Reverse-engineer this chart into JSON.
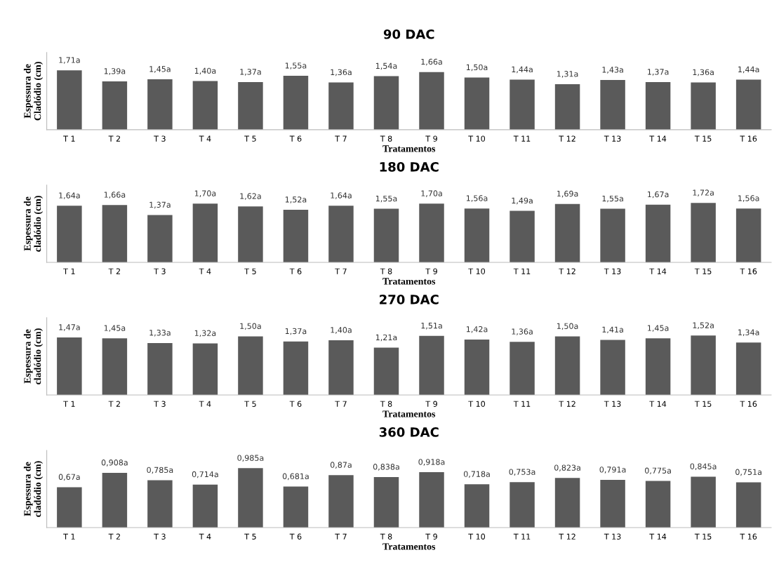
{
  "chart_data": [
    {
      "type": "bar",
      "title": "90 DAC",
      "xlabel": "Tratamentos",
      "ylabel": "Espessura de\nCladódio (cm)",
      "categories": [
        "T 1",
        "T 2",
        "T 3",
        "T 4",
        "T 5",
        "T 6",
        "T 7",
        "T 8",
        "T 9",
        "T 10",
        "T 11",
        "T 12",
        "T 13",
        "T 14",
        "T 15",
        "T 16"
      ],
      "color": "#5a5a5a",
      "values": [
        1.71,
        1.39,
        1.45,
        1.4,
        1.37,
        1.55,
        1.36,
        1.54,
        1.66,
        1.5,
        1.44,
        1.31,
        1.43,
        1.37,
        1.36,
        1.44
      ],
      "value_labels": [
        "1,71a",
        "1,39a",
        "1,45a",
        "1,40a",
        "1,37a",
        "1,55a",
        "1,36a",
        "1,54a",
        "1,66a",
        "1,50a",
        "1,44a",
        "1,31a",
        "1,43a",
        "1,37a",
        "1,36a",
        "1,44a"
      ],
      "tick_labels": "x",
      "grid": false
    },
    {
      "type": "bar",
      "title": "180 DAC",
      "xlabel": "Tratamentos",
      "ylabel": "Espessura de\ncladódio (cm)",
      "categories": [
        "T 1",
        "T 2",
        "T 3",
        "T 4",
        "T 5",
        "T 6",
        "T 7",
        "T 8",
        "T 9",
        "T 10",
        "T 11",
        "T 12",
        "T 13",
        "T 14",
        "T 15",
        "T 16"
      ],
      "color": "#5a5a5a",
      "values": [
        1.64,
        1.66,
        1.37,
        1.7,
        1.62,
        1.52,
        1.64,
        1.55,
        1.7,
        1.56,
        1.49,
        1.69,
        1.55,
        1.67,
        1.72,
        1.56
      ],
      "value_labels": [
        "1,64a",
        "1,66a",
        "1,37a",
        "1,70a",
        "1,62a",
        "1,52a",
        "1,64a",
        "1,55a",
        "1,70a",
        "1,56a",
        "1,49a",
        "1,69a",
        "1,55a",
        "1,67a",
        "1,72a",
        "1,56a"
      ],
      "tick_labels": "x",
      "grid": false
    },
    {
      "type": "bar",
      "title": "270 DAC",
      "xlabel": "Tratamentos",
      "ylabel": "Espessura de\ncladódio (cm)",
      "categories": [
        "T 1",
        "T 2",
        "T 3",
        "T 4",
        "T 5",
        "T 6",
        "T 7",
        "T 8",
        "T 9",
        "T 10",
        "T 11",
        "T 12",
        "T 13",
        "T 14",
        "T 15",
        "T 16"
      ],
      "color": "#5a5a5a",
      "values": [
        1.47,
        1.45,
        1.33,
        1.32,
        1.5,
        1.37,
        1.4,
        1.21,
        1.51,
        1.42,
        1.36,
        1.5,
        1.41,
        1.45,
        1.52,
        1.34
      ],
      "value_labels": [
        "1,47a",
        "1,45a",
        "1,33a",
        "1,32a",
        "1,50a",
        "1,37a",
        "1,40a",
        "1,21a",
        "1,51a",
        "1,42a",
        "1,36a",
        "1,50a",
        "1,41a",
        "1,45a",
        "1,52a",
        "1,34a"
      ],
      "tick_labels": "x",
      "grid": false
    },
    {
      "type": "bar",
      "title": "360 DAC",
      "xlabel": "Tratamentos",
      "ylabel": "Espessura de\ncladódio (cm)",
      "categories": [
        "T 1",
        "T 2",
        "T 3",
        "T 4",
        "T 5",
        "T 6",
        "T 7",
        "T 8",
        "T 9",
        "T 10",
        "T 11",
        "T 12",
        "T 13",
        "T 14",
        "T 15",
        "T 16"
      ],
      "color": "#5a5a5a",
      "values": [
        0.67,
        0.908,
        0.785,
        0.714,
        0.985,
        0.681,
        0.87,
        0.838,
        0.918,
        0.718,
        0.753,
        0.823,
        0.791,
        0.775,
        0.845,
        0.751
      ],
      "value_labels": [
        "0,67a",
        "0,908a",
        "0,785a",
        "0,714a",
        "0,985a",
        "0,681a",
        "0,87a",
        "0,838a",
        "0,918a",
        "0,718a",
        "0,753a",
        "0,823a",
        "0,791a",
        "0,775a",
        "0,845a",
        "0,751a"
      ],
      "tick_labels": "x",
      "grid": false
    }
  ]
}
